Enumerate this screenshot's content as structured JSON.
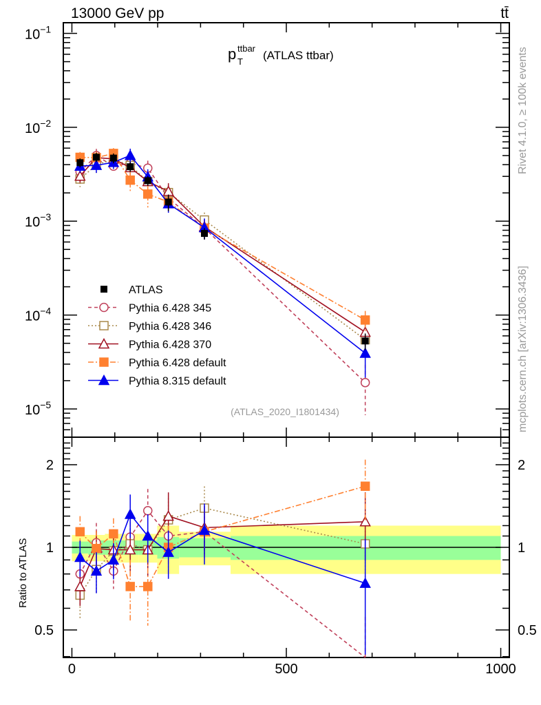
{
  "chart_data": {
    "type": "line",
    "header_left": "13000 GeV pp",
    "header_right": "tt̄",
    "title_main": "p",
    "title_sub": "T",
    "title_sup": "ttbar",
    "title_rest": "(ATLAS ttbar)",
    "side_label_top": "Rivet 4.1.0, ≥ 100k events",
    "side_label_bottom": "mcplots.cern.ch [arXiv:1306.3436]",
    "analysis_label": "(ATLAS_2020_I1801434)",
    "ratio_ylabel": "Ratio to ATLAS",
    "xlim": [
      -20,
      1020
    ],
    "ylim_top": [
      5e-06,
      0.13
    ],
    "ylim_ratio": [
      0.397,
      2.52
    ],
    "yscale": "log",
    "x_ticks": [
      {
        "v": 0,
        "label": "0"
      },
      {
        "v": 500,
        "label": "500"
      },
      {
        "v": 1000,
        "label": "1000"
      }
    ],
    "y_ticks_top": [
      {
        "v": 0.1,
        "base": "10",
        "exp": "−1"
      },
      {
        "v": 0.01,
        "base": "10",
        "exp": "−2"
      },
      {
        "v": 0.001,
        "base": "10",
        "exp": "−3"
      },
      {
        "v": 0.0001,
        "base": "10",
        "exp": "−4"
      },
      {
        "v": 1e-05,
        "base": "10",
        "exp": "−5"
      }
    ],
    "y_ticks_ratio": [
      {
        "v": 2,
        "label": "2"
      },
      {
        "v": 1,
        "label": "1"
      },
      {
        "v": 0.5,
        "label": "0.5"
      }
    ],
    "x": [
      19,
      57,
      97,
      136,
      177,
      225,
      309,
      684
    ],
    "bin_edges": [
      0,
      38,
      77,
      117,
      156,
      199,
      250,
      370,
      1000
    ],
    "data": {
      "name": "ATLAS",
      "values": [
        0.0042,
        0.0048,
        0.0047,
        0.0038,
        0.0027,
        0.0016,
        0.00074,
        5.3e-05
      ],
      "band_inner": [
        0.05,
        0.06,
        0.06,
        0.06,
        0.06,
        0.09,
        0.08,
        0.1
      ],
      "band_outer": [
        0.11,
        0.11,
        0.12,
        0.12,
        0.12,
        0.2,
        0.14,
        0.2
      ]
    },
    "series": [
      {
        "name": "Pythia 6.428 345",
        "color": "#c0405a",
        "dash": "5,4",
        "marker": "circle-open",
        "ratio": [
          0.8,
          1.04,
          0.82,
          1.09,
          1.36,
          1.1,
          1.14,
          0.36
        ],
        "rel_err": [
          0.12,
          0.18,
          0.14,
          0.25,
          0.2,
          0.15,
          0.2,
          0.55
        ]
      },
      {
        "name": "Pythia 6.428 346",
        "color": "#a8884a",
        "dash": "2,3",
        "marker": "square-open",
        "ratio": [
          0.67,
          0.83,
          0.97,
          1.03,
          0.98,
          1.26,
          1.39,
          1.03
        ],
        "rel_err": [
          0.18,
          0.18,
          0.15,
          0.2,
          0.2,
          0.2,
          0.2,
          0.25
        ]
      },
      {
        "name": "Pythia 6.428 370",
        "color": "#a01020",
        "dash": "",
        "marker": "triangle-open",
        "ratio": [
          0.72,
          0.99,
          0.98,
          0.98,
          0.98,
          1.3,
          1.18,
          1.24
        ],
        "rel_err": [
          0.15,
          0.16,
          0.15,
          0.2,
          0.2,
          0.22,
          0.2,
          0.28
        ]
      },
      {
        "name": "Pythia 6.428 default",
        "color": "#ff8030",
        "dash": "8,3,2,3",
        "marker": "square-filled",
        "ratio": [
          1.14,
          0.99,
          1.12,
          0.72,
          0.72,
          1.0,
          1.14,
          1.67
        ],
        "rel_err": [
          0.14,
          0.16,
          0.14,
          0.25,
          0.28,
          0.2,
          0.2,
          0.25
        ]
      },
      {
        "name": "Pythia 8.315 default",
        "color": "#0000ee",
        "dash": "",
        "marker": "triangle-filled",
        "ratio": [
          0.92,
          0.82,
          0.9,
          1.32,
          1.1,
          0.96,
          1.155,
          0.74
        ],
        "rel_err": [
          0.15,
          0.17,
          0.15,
          0.18,
          0.2,
          0.2,
          0.25,
          0.45
        ]
      }
    ]
  }
}
